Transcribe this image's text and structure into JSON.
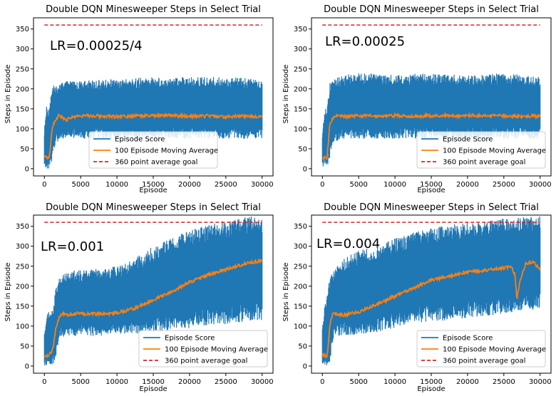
{
  "colors": {
    "episode_score": "#1f77b4",
    "moving_average": "#ff7f0e",
    "goal": "#d62728"
  },
  "chart_data": [
    {
      "type": "line",
      "title": "Double DQN Minesweeper Steps in Select Trial",
      "xlabel": "Episode",
      "ylabel": "Steps in Episode",
      "annotation": "LR=0.00025/4",
      "xlim": [
        -1500,
        31500
      ],
      "ylim": [
        -18,
        378
      ],
      "x_ticks": [
        0,
        5000,
        10000,
        15000,
        20000,
        25000,
        30000
      ],
      "y_ticks": [
        0,
        50,
        100,
        150,
        200,
        250,
        300,
        350
      ],
      "legend_position": "bottom-center",
      "grid": false,
      "series": [
        {
          "name": "Episode Score",
          "x": [
            0,
            300,
            600,
            1000,
            1500,
            2000,
            3000,
            5000,
            10000,
            15000,
            20000,
            25000,
            30000
          ],
          "y_min": [
            0,
            0,
            0,
            10,
            60,
            70,
            75,
            75,
            75,
            75,
            75,
            75,
            75
          ],
          "y_max": [
            100,
            160,
            150,
            205,
            210,
            215,
            220,
            220,
            225,
            230,
            230,
            230,
            225
          ]
        },
        {
          "name": "100 Episode Moving Average",
          "x": [
            0,
            300,
            600,
            800,
            1000,
            1200,
            1500,
            2000,
            2500,
            3000,
            4000,
            5000,
            7500,
            10000,
            12500,
            15000,
            17500,
            20000,
            22500,
            25000,
            27500,
            30000
          ],
          "y": [
            28,
            30,
            25,
            45,
            90,
            110,
            120,
            135,
            128,
            122,
            130,
            133,
            132,
            131,
            133,
            132,
            133,
            131,
            132,
            130,
            132,
            131
          ]
        },
        {
          "name": "360 point average goal",
          "x": [
            0,
            30000
          ],
          "y": [
            360,
            360
          ]
        }
      ]
    },
    {
      "type": "line",
      "title": "Double DQN Minesweeper Steps in Select Trial",
      "xlabel": "Episode",
      "ylabel": "Steps in Episode",
      "annotation": "LR=0.00025",
      "xlim": [
        -1500,
        31500
      ],
      "ylim": [
        -18,
        378
      ],
      "x_ticks": [
        0,
        5000,
        10000,
        15000,
        20000,
        25000,
        30000
      ],
      "y_ticks": [
        0,
        50,
        100,
        150,
        200,
        250,
        300,
        350
      ],
      "legend_position": "bottom-right",
      "grid": false,
      "series": [
        {
          "name": "Episode Score",
          "x": [
            0,
            300,
            600,
            1000,
            1500,
            2000,
            3000,
            5000,
            10000,
            15000,
            20000,
            25000,
            30000
          ],
          "y_min": [
            0,
            0,
            0,
            20,
            65,
            70,
            75,
            75,
            75,
            75,
            75,
            75,
            75
          ],
          "y_max": [
            90,
            150,
            150,
            215,
            225,
            230,
            235,
            240,
            235,
            240,
            235,
            240,
            230
          ]
        },
        {
          "name": "100 Episode Moving Average",
          "x": [
            0,
            300,
            600,
            800,
            1000,
            1200,
            1500,
            2000,
            3000,
            5000,
            7500,
            10000,
            12500,
            15000,
            17500,
            20000,
            22500,
            25000,
            27500,
            30000
          ],
          "y": [
            25,
            28,
            24,
            60,
            110,
            118,
            128,
            133,
            130,
            133,
            132,
            133,
            131,
            133,
            132,
            134,
            132,
            133,
            131,
            132
          ]
        },
        {
          "name": "360 point average goal",
          "x": [
            0,
            30000
          ],
          "y": [
            360,
            360
          ]
        }
      ]
    },
    {
      "type": "line",
      "title": "Double DQN Minesweeper Steps in Select Trial",
      "xlabel": "Episode",
      "ylabel": "Steps in Episode",
      "annotation": "LR=0.001",
      "xlim": [
        -1500,
        31500
      ],
      "ylim": [
        -18,
        378
      ],
      "x_ticks": [
        0,
        5000,
        10000,
        15000,
        20000,
        25000,
        30000
      ],
      "y_ticks": [
        0,
        50,
        100,
        150,
        200,
        250,
        300,
        350
      ],
      "legend_position": "bottom-right",
      "grid": false,
      "series": [
        {
          "name": "Episode Score",
          "x": [
            0,
            400,
            800,
            1200,
            1600,
            2000,
            3000,
            5000,
            7500,
            10000,
            12500,
            15000,
            17500,
            20000,
            22500,
            25000,
            27500,
            30000
          ],
          "y_min": [
            0,
            0,
            0,
            0,
            20,
            70,
            75,
            75,
            75,
            80,
            80,
            85,
            90,
            95,
            100,
            105,
            110,
            115
          ],
          "y_max": [
            80,
            140,
            140,
            140,
            200,
            220,
            240,
            240,
            245,
            250,
            270,
            300,
            320,
            340,
            355,
            365,
            375,
            375
          ]
        },
        {
          "name": "100 Episode Moving Average",
          "x": [
            0,
            400,
            800,
            1200,
            1600,
            2000,
            2500,
            3000,
            5000,
            7500,
            10000,
            12500,
            15000,
            17500,
            20000,
            22500,
            25000,
            27500,
            30000
          ],
          "y": [
            20,
            25,
            30,
            45,
            95,
            120,
            130,
            128,
            132,
            130,
            133,
            145,
            165,
            185,
            210,
            228,
            242,
            255,
            265
          ]
        },
        {
          "name": "360 point average goal",
          "x": [
            0,
            30000
          ],
          "y": [
            360,
            360
          ]
        }
      ]
    },
    {
      "type": "line",
      "title": "Double DQN Minesweeper Steps in Select Trial",
      "xlabel": "Episode",
      "ylabel": "Steps in Episode",
      "annotation": "LR=0.004",
      "xlim": [
        -1500,
        31500
      ],
      "ylim": [
        -18,
        378
      ],
      "x_ticks": [
        0,
        5000,
        10000,
        15000,
        20000,
        25000,
        30000
      ],
      "y_ticks": [
        0,
        50,
        100,
        150,
        200,
        250,
        300,
        350
      ],
      "legend_position": "bottom-right",
      "grid": false,
      "series": [
        {
          "name": "Episode Score",
          "x": [
            0,
            300,
            600,
            1000,
            1500,
            2000,
            3000,
            5000,
            7500,
            10000,
            12500,
            15000,
            17500,
            20000,
            22500,
            25000,
            26500,
            27500,
            30000
          ],
          "y_min": [
            0,
            0,
            0,
            10,
            65,
            75,
            75,
            80,
            85,
            95,
            105,
            110,
            115,
            120,
            125,
            130,
            135,
            140,
            140
          ],
          "y_max": [
            100,
            150,
            170,
            220,
            240,
            250,
            270,
            290,
            300,
            320,
            335,
            345,
            355,
            360,
            365,
            370,
            370,
            375,
            375
          ]
        },
        {
          "name": "100 Episode Moving Average",
          "x": [
            0,
            300,
            600,
            800,
            1000,
            1300,
            1600,
            2000,
            3000,
            5000,
            7500,
            10000,
            12500,
            15000,
            17500,
            20000,
            22500,
            25000,
            26000,
            26500,
            26800,
            27200,
            28000,
            29000,
            30000
          ],
          "y": [
            28,
            25,
            25,
            50,
            100,
            125,
            135,
            130,
            128,
            135,
            155,
            175,
            195,
            215,
            225,
            235,
            240,
            245,
            250,
            230,
            168,
            210,
            255,
            262,
            240
          ]
        },
        {
          "name": "360 point average goal",
          "x": [
            0,
            30000
          ],
          "y": [
            360,
            360
          ]
        }
      ]
    }
  ]
}
